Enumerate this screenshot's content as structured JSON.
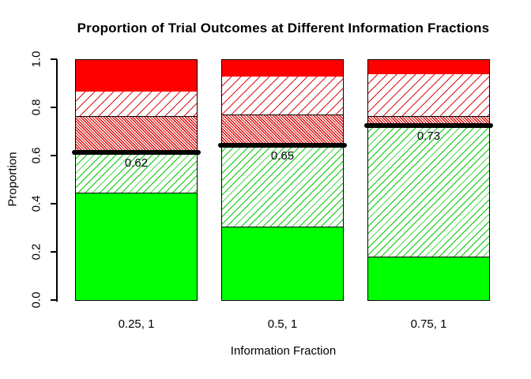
{
  "chart_data": {
    "type": "bar",
    "subtype": "stacked-bar-with-threshold-lines",
    "title": "Proportion of Trial Outcomes at Different Information Fractions",
    "xlabel": "Information Fraction",
    "ylabel": "Proportion",
    "ylim": [
      0,
      1
    ],
    "yticks": [
      0.0,
      0.2,
      0.4,
      0.6,
      0.8,
      1.0
    ],
    "ytick_labels": [
      "0.0",
      "0.2",
      "0.4",
      "0.6",
      "0.8",
      "1.0"
    ],
    "categories": [
      "0.25, 1",
      "0.5, 1",
      "0.75, 1"
    ],
    "grid": false,
    "legend": "none",
    "colors": {
      "green_solid": "#00FF00",
      "green_hatch_line": "#00CC00",
      "red_solid": "#FF0000",
      "red_hatch_line": "#E01010",
      "threshold_line": "#000000",
      "background": "#FFFFFF",
      "border": "#000000"
    },
    "segment_styles": {
      "green_solid": {
        "pattern": "solid",
        "color": "#00FF00"
      },
      "green_hatch": {
        "pattern": "hatch",
        "color": "#00CC00",
        "angle": 135,
        "line": 1,
        "period": 6.5
      },
      "red_hatch_dense": {
        "pattern": "hatch",
        "color": "#E01010",
        "angle": 45,
        "line": 1.3,
        "period": 2.6
      },
      "red_hatch_light": {
        "pattern": "hatch",
        "color": "#DD1010",
        "angle": 135,
        "line": 1.1,
        "period": 8.5
      },
      "red_solid": {
        "pattern": "solid",
        "color": "#FF0000"
      }
    },
    "bars": [
      {
        "category": "0.25, 1",
        "threshold": 0.62,
        "threshold_label": "0.62",
        "segments": [
          {
            "style": "green_solid",
            "from": 0,
            "to": 0.445
          },
          {
            "style": "green_hatch",
            "from": 0.445,
            "to": 0.62
          },
          {
            "style": "red_hatch_dense",
            "from": 0.62,
            "to": 0.765
          },
          {
            "style": "red_hatch_light",
            "from": 0.765,
            "to": 0.87
          },
          {
            "style": "red_solid",
            "from": 0.87,
            "to": 1.0
          }
        ]
      },
      {
        "category": "0.5, 1",
        "threshold": 0.65,
        "threshold_label": "0.65",
        "segments": [
          {
            "style": "green_solid",
            "from": 0,
            "to": 0.305
          },
          {
            "style": "green_hatch",
            "from": 0.305,
            "to": 0.65
          },
          {
            "style": "red_hatch_dense",
            "from": 0.65,
            "to": 0.77
          },
          {
            "style": "red_hatch_light",
            "from": 0.77,
            "to": 0.93
          },
          {
            "style": "red_solid",
            "from": 0.93,
            "to": 1.0
          }
        ]
      },
      {
        "category": "0.75, 1",
        "threshold": 0.73,
        "threshold_label": "0.73",
        "segments": [
          {
            "style": "green_solid",
            "from": 0,
            "to": 0.18
          },
          {
            "style": "green_hatch",
            "from": 0.18,
            "to": 0.73
          },
          {
            "style": "red_hatch_dense",
            "from": 0.73,
            "to": 0.765
          },
          {
            "style": "red_hatch_light",
            "from": 0.765,
            "to": 0.94
          },
          {
            "style": "red_solid",
            "from": 0.94,
            "to": 1.0
          }
        ]
      }
    ]
  }
}
